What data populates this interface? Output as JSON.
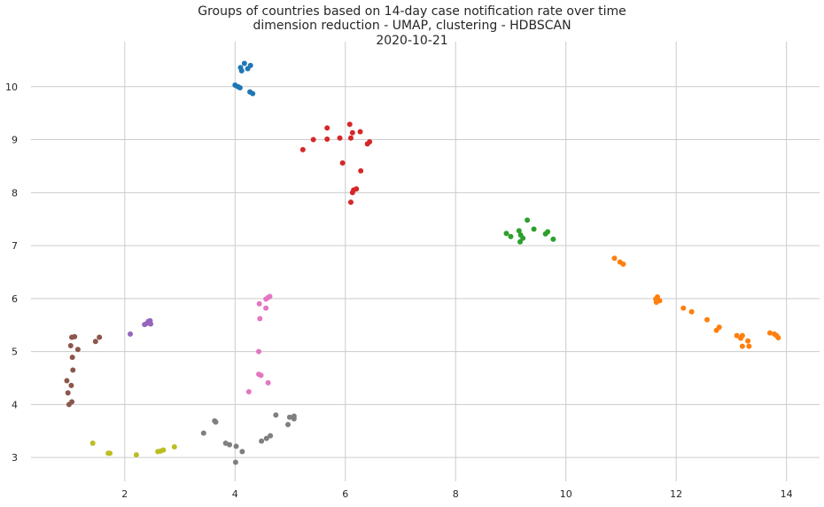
{
  "chart_data": {
    "type": "scatter",
    "title_lines": [
      "Groups of countries based on 14-day case notification rate over time",
      "dimension reduction - UMAP, clustering - HDBSCAN",
      "2020-10-21"
    ],
    "xlabel": "",
    "ylabel": "",
    "xlim": [
      0.3,
      14.6
    ],
    "ylim": [
      2.55,
      10.85
    ],
    "x_ticks": [
      2,
      4,
      6,
      8,
      10,
      12,
      14
    ],
    "y_ticks": [
      3,
      4,
      5,
      6,
      7,
      8,
      9,
      10
    ],
    "grid": true,
    "legend": "none",
    "series": [
      {
        "color": "#1f77b4",
        "points": [
          [
            4.1,
            10.36
          ],
          [
            4.17,
            10.44
          ],
          [
            4.12,
            10.3
          ],
          [
            4.23,
            10.34
          ],
          [
            4.28,
            10.4
          ],
          [
            4.0,
            10.03
          ],
          [
            4.05,
            10.0
          ],
          [
            4.09,
            9.98
          ],
          [
            4.27,
            9.9
          ],
          [
            4.32,
            9.87
          ]
        ]
      },
      {
        "color": "#d62728",
        "points": [
          [
            5.23,
            8.81
          ],
          [
            5.42,
            9.0
          ],
          [
            5.67,
            9.22
          ],
          [
            5.67,
            9.01
          ],
          [
            5.9,
            9.03
          ],
          [
            6.08,
            9.29
          ],
          [
            6.13,
            9.13
          ],
          [
            6.27,
            9.15
          ],
          [
            6.1,
            9.03
          ],
          [
            6.4,
            8.92
          ],
          [
            6.44,
            8.96
          ],
          [
            5.95,
            8.56
          ],
          [
            6.28,
            8.41
          ],
          [
            6.2,
            8.07
          ],
          [
            6.15,
            8.05
          ],
          [
            6.13,
            8.0
          ],
          [
            6.1,
            7.82
          ]
        ]
      },
      {
        "color": "#2ca02c",
        "points": [
          [
            8.92,
            7.23
          ],
          [
            9.0,
            7.17
          ],
          [
            9.15,
            7.28
          ],
          [
            9.18,
            7.2
          ],
          [
            9.22,
            7.14
          ],
          [
            9.17,
            7.07
          ],
          [
            9.3,
            7.48
          ],
          [
            9.42,
            7.31
          ],
          [
            9.63,
            7.22
          ],
          [
            9.67,
            7.26
          ],
          [
            9.77,
            7.12
          ]
        ]
      },
      {
        "color": "#ff7f0e",
        "points": [
          [
            10.88,
            6.76
          ],
          [
            10.98,
            6.69
          ],
          [
            11.04,
            6.65
          ],
          [
            11.63,
            5.99
          ],
          [
            11.66,
            6.03
          ],
          [
            11.7,
            5.96
          ],
          [
            11.64,
            5.93
          ],
          [
            12.13,
            5.82
          ],
          [
            12.28,
            5.75
          ],
          [
            12.56,
            5.6
          ],
          [
            12.78,
            5.46
          ],
          [
            12.73,
            5.4
          ],
          [
            13.1,
            5.3
          ],
          [
            13.2,
            5.3
          ],
          [
            13.17,
            5.25
          ],
          [
            13.2,
            5.1
          ],
          [
            13.32,
            5.1
          ],
          [
            13.3,
            5.2
          ],
          [
            13.7,
            5.35
          ],
          [
            13.78,
            5.33
          ],
          [
            13.82,
            5.3
          ],
          [
            13.85,
            5.26
          ]
        ]
      },
      {
        "color": "#9467bd",
        "points": [
          [
            2.1,
            5.33
          ],
          [
            2.36,
            5.51
          ],
          [
            2.4,
            5.53
          ],
          [
            2.43,
            5.57
          ],
          [
            2.46,
            5.58
          ],
          [
            2.47,
            5.52
          ]
        ]
      },
      {
        "color": "#e377c2",
        "points": [
          [
            4.44,
            5.9
          ],
          [
            4.56,
            5.99
          ],
          [
            4.6,
            6.02
          ],
          [
            4.63,
            6.04
          ],
          [
            4.56,
            5.82
          ],
          [
            4.45,
            5.62
          ],
          [
            4.43,
            5.0
          ],
          [
            4.43,
            4.57
          ],
          [
            4.47,
            4.55
          ],
          [
            4.6,
            4.41
          ],
          [
            4.25,
            4.24
          ]
        ]
      },
      {
        "color": "#8c564b",
        "points": [
          [
            1.04,
            5.27
          ],
          [
            1.09,
            5.28
          ],
          [
            1.54,
            5.27
          ],
          [
            1.47,
            5.19
          ],
          [
            1.02,
            5.11
          ],
          [
            1.15,
            5.04
          ],
          [
            1.05,
            4.89
          ],
          [
            1.06,
            4.65
          ],
          [
            0.95,
            4.45
          ],
          [
            1.03,
            4.36
          ],
          [
            0.97,
            4.22
          ],
          [
            1.04,
            4.05
          ],
          [
            0.99,
            4.0
          ]
        ]
      },
      {
        "color": "#7f7f7f",
        "points": [
          [
            3.43,
            3.46
          ],
          [
            3.63,
            3.69
          ],
          [
            3.65,
            3.67
          ],
          [
            3.83,
            3.27
          ],
          [
            3.9,
            3.24
          ],
          [
            4.02,
            3.21
          ],
          [
            4.13,
            3.11
          ],
          [
            4.01,
            2.91
          ],
          [
            4.48,
            3.31
          ],
          [
            4.57,
            3.36
          ],
          [
            4.64,
            3.41
          ],
          [
            4.74,
            3.8
          ],
          [
            4.96,
            3.62
          ],
          [
            4.99,
            3.76
          ],
          [
            5.07,
            3.78
          ],
          [
            5.07,
            3.73
          ]
        ]
      },
      {
        "color": "#bcbd22",
        "points": [
          [
            1.42,
            3.27
          ],
          [
            1.7,
            3.08
          ],
          [
            1.73,
            3.08
          ],
          [
            2.21,
            3.05
          ],
          [
            2.6,
            3.11
          ],
          [
            2.65,
            3.12
          ],
          [
            2.7,
            3.14
          ],
          [
            2.9,
            3.2
          ]
        ]
      }
    ]
  }
}
